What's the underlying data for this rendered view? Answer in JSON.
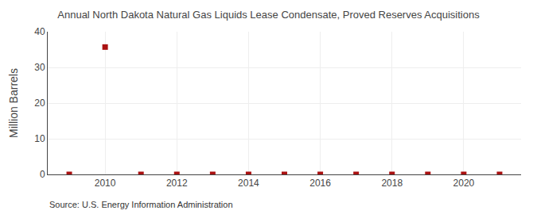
{
  "chart_data": {
    "type": "scatter",
    "title": "Annual North Dakota Natural Gas Liquids Lease Condensate, Proved Reserves Acquisitions",
    "ylabel": "Million Barrels",
    "annotations": [
      "Source: U.S. Energy Information Administration"
    ],
    "x": [
      2009,
      2010,
      2011,
      2012,
      2013,
      2014,
      2015,
      2016,
      2017,
      2018,
      2019,
      2020,
      2021
    ],
    "values": [
      0,
      35.7,
      0,
      0,
      0,
      0,
      0,
      0,
      0,
      0,
      0,
      0,
      0
    ],
    "xlim": [
      2008.4,
      2021.6
    ],
    "ylim": [
      0,
      40
    ],
    "xticks": [
      2010,
      2012,
      2014,
      2016,
      2018,
      2020
    ],
    "yticks": [
      0,
      10,
      20,
      30,
      40
    ],
    "color": "#aa1111",
    "marker": "square",
    "grid": true
  }
}
